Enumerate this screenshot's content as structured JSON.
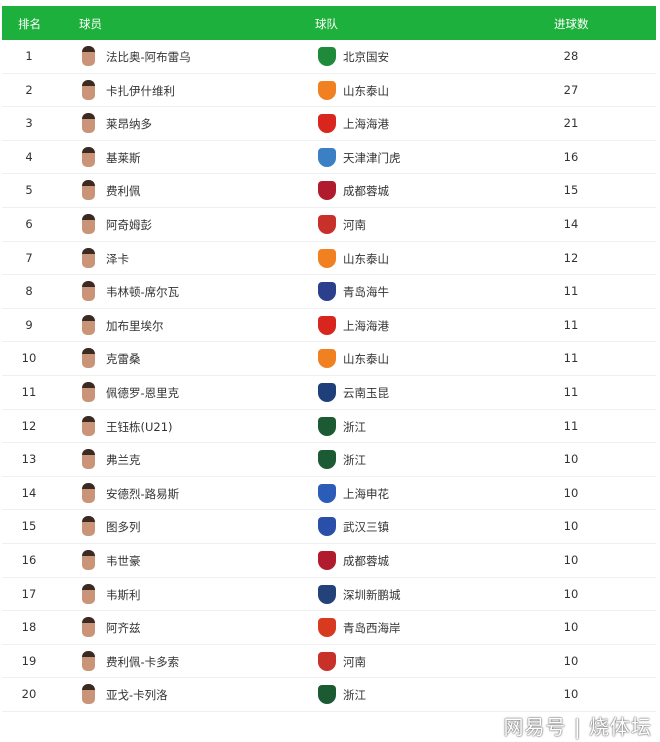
{
  "header": {
    "rank": "排名",
    "player": "球员",
    "team": "球队",
    "goals": "进球数"
  },
  "rows": [
    {
      "rank": "1",
      "player": "法比奥-阿布雷乌",
      "team": "北京国安",
      "goals": "28",
      "logo_color": "#1e8a3a"
    },
    {
      "rank": "2",
      "player": "卡扎伊什维利",
      "team": "山东泰山",
      "goals": "27",
      "logo_color": "#f08020"
    },
    {
      "rank": "3",
      "player": "莱昂纳多",
      "team": "上海海港",
      "goals": "21",
      "logo_color": "#d8261e"
    },
    {
      "rank": "4",
      "player": "基莱斯",
      "team": "天津津门虎",
      "goals": "16",
      "logo_color": "#3b7fc4"
    },
    {
      "rank": "5",
      "player": "费利佩",
      "team": "成都蓉城",
      "goals": "15",
      "logo_color": "#b01c2e"
    },
    {
      "rank": "6",
      "player": "阿奇姆彭",
      "team": "河南",
      "goals": "14",
      "logo_color": "#c8302a"
    },
    {
      "rank": "7",
      "player": "泽卡",
      "team": "山东泰山",
      "goals": "12",
      "logo_color": "#f08020"
    },
    {
      "rank": "8",
      "player": "韦林顿-席尔瓦",
      "team": "青岛海牛",
      "goals": "11",
      "logo_color": "#2b3f8c"
    },
    {
      "rank": "9",
      "player": "加布里埃尔",
      "team": "上海海港",
      "goals": "11",
      "logo_color": "#d8261e"
    },
    {
      "rank": "10",
      "player": "克雷桑",
      "team": "山东泰山",
      "goals": "11",
      "logo_color": "#f08020"
    },
    {
      "rank": "11",
      "player": "佩德罗-恩里克",
      "team": "云南玉昆",
      "goals": "11",
      "logo_color": "#1f3f7a"
    },
    {
      "rank": "12",
      "player": "王钰栋(U21)",
      "team": "浙江",
      "goals": "11",
      "logo_color": "#1c5a34"
    },
    {
      "rank": "13",
      "player": "弗兰克",
      "team": "浙江",
      "goals": "10",
      "logo_color": "#1c5a34"
    },
    {
      "rank": "14",
      "player": "安德烈-路易斯",
      "team": "上海申花",
      "goals": "10",
      "logo_color": "#2a5cb8"
    },
    {
      "rank": "15",
      "player": "图多列",
      "team": "武汉三镇",
      "goals": "10",
      "logo_color": "#2a4fa8"
    },
    {
      "rank": "16",
      "player": "韦世豪",
      "team": "成都蓉城",
      "goals": "10",
      "logo_color": "#b01c2e"
    },
    {
      "rank": "17",
      "player": "韦斯利",
      "team": "深圳新鹏城",
      "goals": "10",
      "logo_color": "#24427a"
    },
    {
      "rank": "18",
      "player": "阿齐兹",
      "team": "青岛西海岸",
      "goals": "10",
      "logo_color": "#d83a20"
    },
    {
      "rank": "19",
      "player": "费利佩-卡多索",
      "team": "河南",
      "goals": "10",
      "logo_color": "#c8302a"
    },
    {
      "rank": "20",
      "player": "亚戈-卡列洛",
      "team": "浙江",
      "goals": "10",
      "logo_color": "#1c5a34"
    }
  ],
  "watermark": "网易号 | 烧体坛",
  "colors": {
    "header_bg": "#1db03c"
  }
}
